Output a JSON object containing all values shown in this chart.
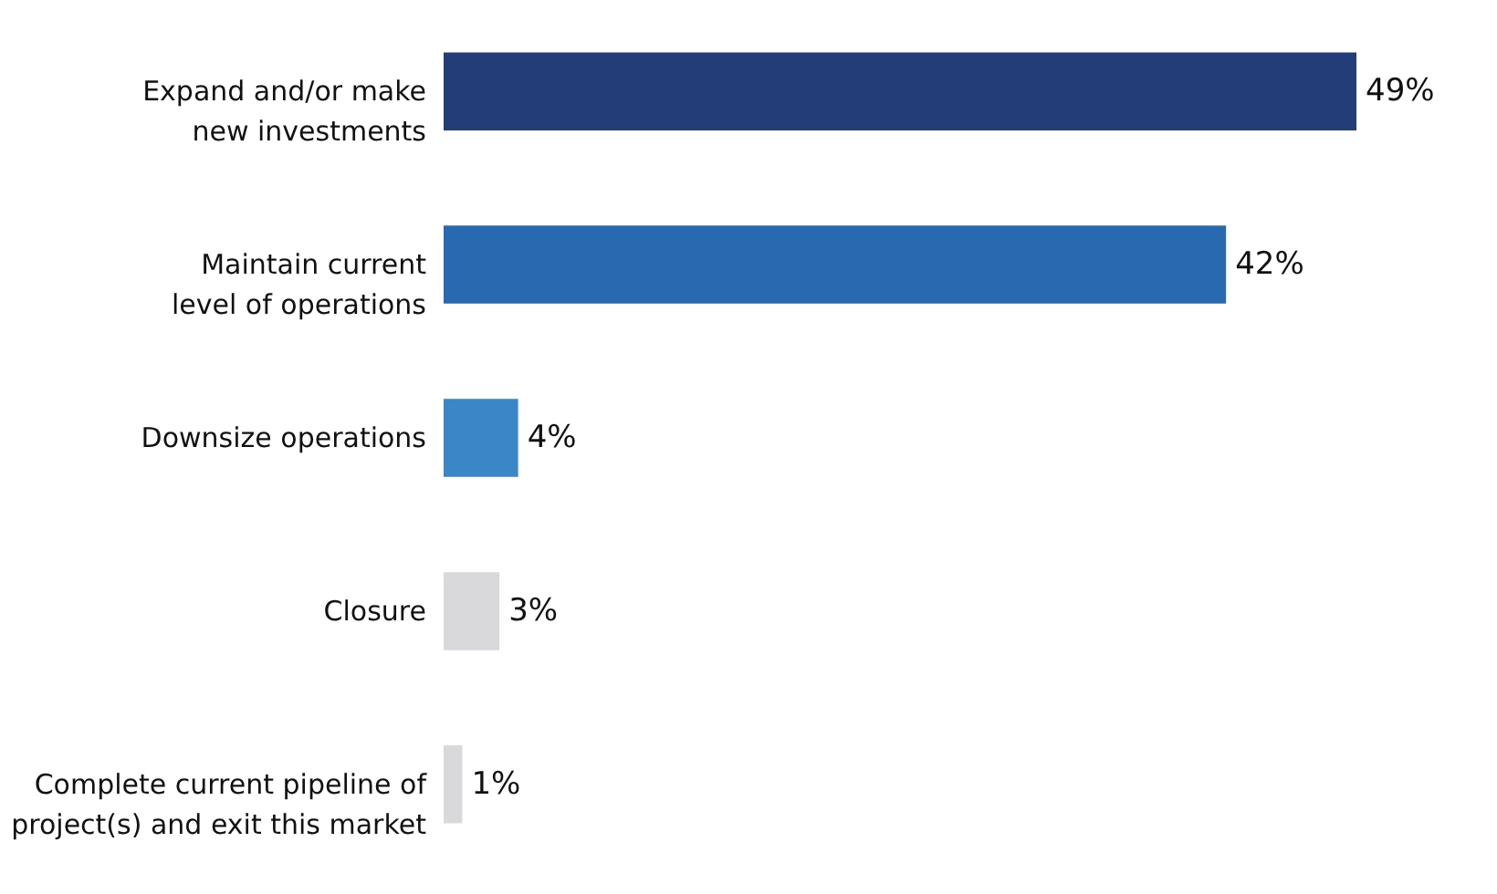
{
  "chart_data": {
    "type": "bar",
    "orientation": "horizontal",
    "grid": false,
    "categories": [
      "Expand and/or make new investments",
      "Maintain current level of operations",
      "Downsize operations",
      "Closure",
      "Complete current pipeline of project(s) and exit this market"
    ],
    "values": [
      49,
      42,
      4,
      3,
      1
    ],
    "value_labels": [
      "49%",
      "42%",
      "4%",
      "3%",
      "1%"
    ],
    "colors": [
      "#223d77",
      "#2869b0",
      "#3a86c6",
      "#d9d9db",
      "#d9d9db"
    ]
  }
}
